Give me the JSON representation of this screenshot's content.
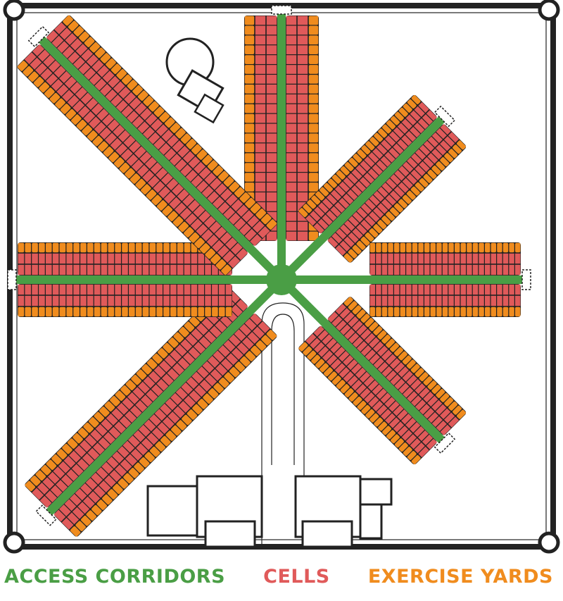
{
  "colors": {
    "corridor": "#4a9e45",
    "cell": "#e05a5a",
    "yard": "#f08c1e",
    "ink": "#222222",
    "paper": "#ffffff"
  },
  "legend": [
    {
      "label": "ACCESS CORRIDORS",
      "color": "#4a9e45"
    },
    {
      "label": "CELLS",
      "color": "#e05a5a"
    },
    {
      "label": "EXERCISE YARDS",
      "color": "#f08c1e"
    }
  ],
  "wings": [
    {
      "id": "north",
      "direction": "N",
      "cells_per_row": 23,
      "cell_rows": 2,
      "yard_rows": 2
    },
    {
      "id": "north-east",
      "direction": "NE",
      "cells_per_row": 28,
      "cell_rows": 2,
      "yard_rows": 2
    },
    {
      "id": "east",
      "direction": "E",
      "cells_per_row": 25,
      "cell_rows": 2,
      "yard_rows": 2
    },
    {
      "id": "south-east",
      "direction": "SE",
      "cells_per_row": 28,
      "cell_rows": 2,
      "yard_rows": 2
    },
    {
      "id": "south-west",
      "direction": "SW",
      "cells_per_row": 38,
      "cell_rows": 2,
      "yard_rows": 2
    },
    {
      "id": "west",
      "direction": "W",
      "cells_per_row": 31,
      "cell_rows": 2,
      "yard_rows": 2
    },
    {
      "id": "north-west",
      "direction": "NW",
      "cells_per_row": 39,
      "cell_rows": 2,
      "yard_rows": 2
    }
  ]
}
